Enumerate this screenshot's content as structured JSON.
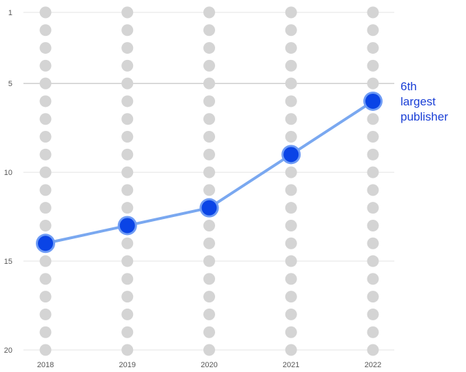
{
  "chart_data": {
    "type": "line",
    "title": "",
    "xlabel": "",
    "ylabel": "",
    "x": [
      "2018",
      "2019",
      "2020",
      "2021",
      "2022"
    ],
    "series": [
      {
        "values": [
          14,
          13,
          12,
          9,
          6
        ]
      }
    ],
    "ylim": [
      1,
      20
    ],
    "y_inverted": true,
    "y_ticks": [
      1,
      5,
      10,
      15,
      20
    ],
    "grid": true,
    "background_dot_columns": true,
    "annotation": {
      "lines": [
        "6th",
        "largest",
        "publisher"
      ],
      "at_x": "2022"
    },
    "colors": {
      "line": "#7aa8f0",
      "marker": "#0a44e6",
      "marker_halo": "#6f9cf5",
      "annotation": "#1a3fd6",
      "dot": "#d4d4d4",
      "grid": "#e3e3e3",
      "grid_major": "#b5b5b5"
    }
  }
}
